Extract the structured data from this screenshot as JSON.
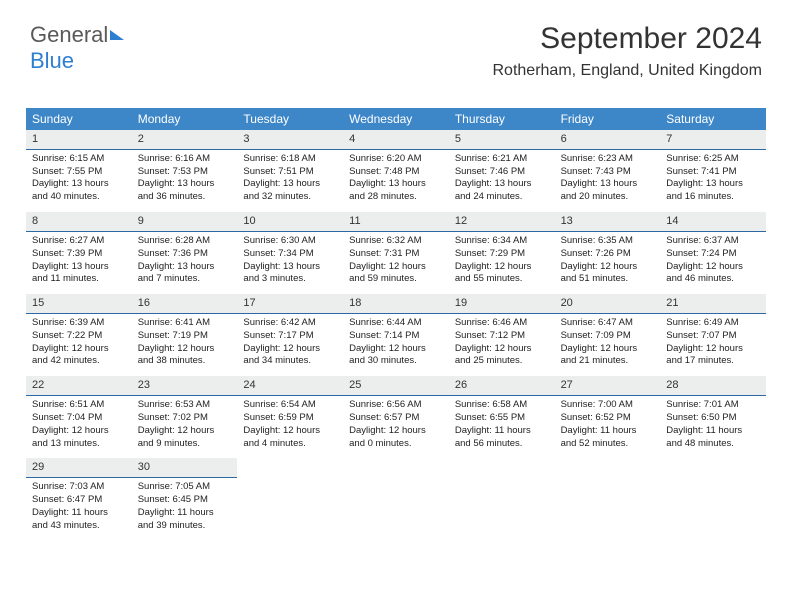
{
  "logo": {
    "text_gray": "General",
    "text_blue": "Blue"
  },
  "title": "September 2024",
  "location": "Rotherham, England, United Kingdom",
  "colors": {
    "header_bg": "#3d87c9",
    "daynum_bg": "#eceded",
    "daynum_border": "#2b69a5",
    "page_bg": "#ffffff",
    "text": "#222222",
    "logo_gray": "#5a5a5a",
    "logo_blue": "#2f7fd1"
  },
  "typography": {
    "title_fontsize": 30,
    "location_fontsize": 16,
    "weekday_fontsize": 12,
    "cell_fontsize": 9.5
  },
  "weekdays": [
    "Sunday",
    "Monday",
    "Tuesday",
    "Wednesday",
    "Thursday",
    "Friday",
    "Saturday"
  ],
  "weeks": [
    [
      {
        "n": "1",
        "sr": "Sunrise: 6:15 AM",
        "ss": "Sunset: 7:55 PM",
        "d1": "Daylight: 13 hours",
        "d2": "and 40 minutes."
      },
      {
        "n": "2",
        "sr": "Sunrise: 6:16 AM",
        "ss": "Sunset: 7:53 PM",
        "d1": "Daylight: 13 hours",
        "d2": "and 36 minutes."
      },
      {
        "n": "3",
        "sr": "Sunrise: 6:18 AM",
        "ss": "Sunset: 7:51 PM",
        "d1": "Daylight: 13 hours",
        "d2": "and 32 minutes."
      },
      {
        "n": "4",
        "sr": "Sunrise: 6:20 AM",
        "ss": "Sunset: 7:48 PM",
        "d1": "Daylight: 13 hours",
        "d2": "and 28 minutes."
      },
      {
        "n": "5",
        "sr": "Sunrise: 6:21 AM",
        "ss": "Sunset: 7:46 PM",
        "d1": "Daylight: 13 hours",
        "d2": "and 24 minutes."
      },
      {
        "n": "6",
        "sr": "Sunrise: 6:23 AM",
        "ss": "Sunset: 7:43 PM",
        "d1": "Daylight: 13 hours",
        "d2": "and 20 minutes."
      },
      {
        "n": "7",
        "sr": "Sunrise: 6:25 AM",
        "ss": "Sunset: 7:41 PM",
        "d1": "Daylight: 13 hours",
        "d2": "and 16 minutes."
      }
    ],
    [
      {
        "n": "8",
        "sr": "Sunrise: 6:27 AM",
        "ss": "Sunset: 7:39 PM",
        "d1": "Daylight: 13 hours",
        "d2": "and 11 minutes."
      },
      {
        "n": "9",
        "sr": "Sunrise: 6:28 AM",
        "ss": "Sunset: 7:36 PM",
        "d1": "Daylight: 13 hours",
        "d2": "and 7 minutes."
      },
      {
        "n": "10",
        "sr": "Sunrise: 6:30 AM",
        "ss": "Sunset: 7:34 PM",
        "d1": "Daylight: 13 hours",
        "d2": "and 3 minutes."
      },
      {
        "n": "11",
        "sr": "Sunrise: 6:32 AM",
        "ss": "Sunset: 7:31 PM",
        "d1": "Daylight: 12 hours",
        "d2": "and 59 minutes."
      },
      {
        "n": "12",
        "sr": "Sunrise: 6:34 AM",
        "ss": "Sunset: 7:29 PM",
        "d1": "Daylight: 12 hours",
        "d2": "and 55 minutes."
      },
      {
        "n": "13",
        "sr": "Sunrise: 6:35 AM",
        "ss": "Sunset: 7:26 PM",
        "d1": "Daylight: 12 hours",
        "d2": "and 51 minutes."
      },
      {
        "n": "14",
        "sr": "Sunrise: 6:37 AM",
        "ss": "Sunset: 7:24 PM",
        "d1": "Daylight: 12 hours",
        "d2": "and 46 minutes."
      }
    ],
    [
      {
        "n": "15",
        "sr": "Sunrise: 6:39 AM",
        "ss": "Sunset: 7:22 PM",
        "d1": "Daylight: 12 hours",
        "d2": "and 42 minutes."
      },
      {
        "n": "16",
        "sr": "Sunrise: 6:41 AM",
        "ss": "Sunset: 7:19 PM",
        "d1": "Daylight: 12 hours",
        "d2": "and 38 minutes."
      },
      {
        "n": "17",
        "sr": "Sunrise: 6:42 AM",
        "ss": "Sunset: 7:17 PM",
        "d1": "Daylight: 12 hours",
        "d2": "and 34 minutes."
      },
      {
        "n": "18",
        "sr": "Sunrise: 6:44 AM",
        "ss": "Sunset: 7:14 PM",
        "d1": "Daylight: 12 hours",
        "d2": "and 30 minutes."
      },
      {
        "n": "19",
        "sr": "Sunrise: 6:46 AM",
        "ss": "Sunset: 7:12 PM",
        "d1": "Daylight: 12 hours",
        "d2": "and 25 minutes."
      },
      {
        "n": "20",
        "sr": "Sunrise: 6:47 AM",
        "ss": "Sunset: 7:09 PM",
        "d1": "Daylight: 12 hours",
        "d2": "and 21 minutes."
      },
      {
        "n": "21",
        "sr": "Sunrise: 6:49 AM",
        "ss": "Sunset: 7:07 PM",
        "d1": "Daylight: 12 hours",
        "d2": "and 17 minutes."
      }
    ],
    [
      {
        "n": "22",
        "sr": "Sunrise: 6:51 AM",
        "ss": "Sunset: 7:04 PM",
        "d1": "Daylight: 12 hours",
        "d2": "and 13 minutes."
      },
      {
        "n": "23",
        "sr": "Sunrise: 6:53 AM",
        "ss": "Sunset: 7:02 PM",
        "d1": "Daylight: 12 hours",
        "d2": "and 9 minutes."
      },
      {
        "n": "24",
        "sr": "Sunrise: 6:54 AM",
        "ss": "Sunset: 6:59 PM",
        "d1": "Daylight: 12 hours",
        "d2": "and 4 minutes."
      },
      {
        "n": "25",
        "sr": "Sunrise: 6:56 AM",
        "ss": "Sunset: 6:57 PM",
        "d1": "Daylight: 12 hours",
        "d2": "and 0 minutes."
      },
      {
        "n": "26",
        "sr": "Sunrise: 6:58 AM",
        "ss": "Sunset: 6:55 PM",
        "d1": "Daylight: 11 hours",
        "d2": "and 56 minutes."
      },
      {
        "n": "27",
        "sr": "Sunrise: 7:00 AM",
        "ss": "Sunset: 6:52 PM",
        "d1": "Daylight: 11 hours",
        "d2": "and 52 minutes."
      },
      {
        "n": "28",
        "sr": "Sunrise: 7:01 AM",
        "ss": "Sunset: 6:50 PM",
        "d1": "Daylight: 11 hours",
        "d2": "and 48 minutes."
      }
    ],
    [
      {
        "n": "29",
        "sr": "Sunrise: 7:03 AM",
        "ss": "Sunset: 6:47 PM",
        "d1": "Daylight: 11 hours",
        "d2": "and 43 minutes."
      },
      {
        "n": "30",
        "sr": "Sunrise: 7:05 AM",
        "ss": "Sunset: 6:45 PM",
        "d1": "Daylight: 11 hours",
        "d2": "and 39 minutes."
      },
      null,
      null,
      null,
      null,
      null
    ]
  ]
}
